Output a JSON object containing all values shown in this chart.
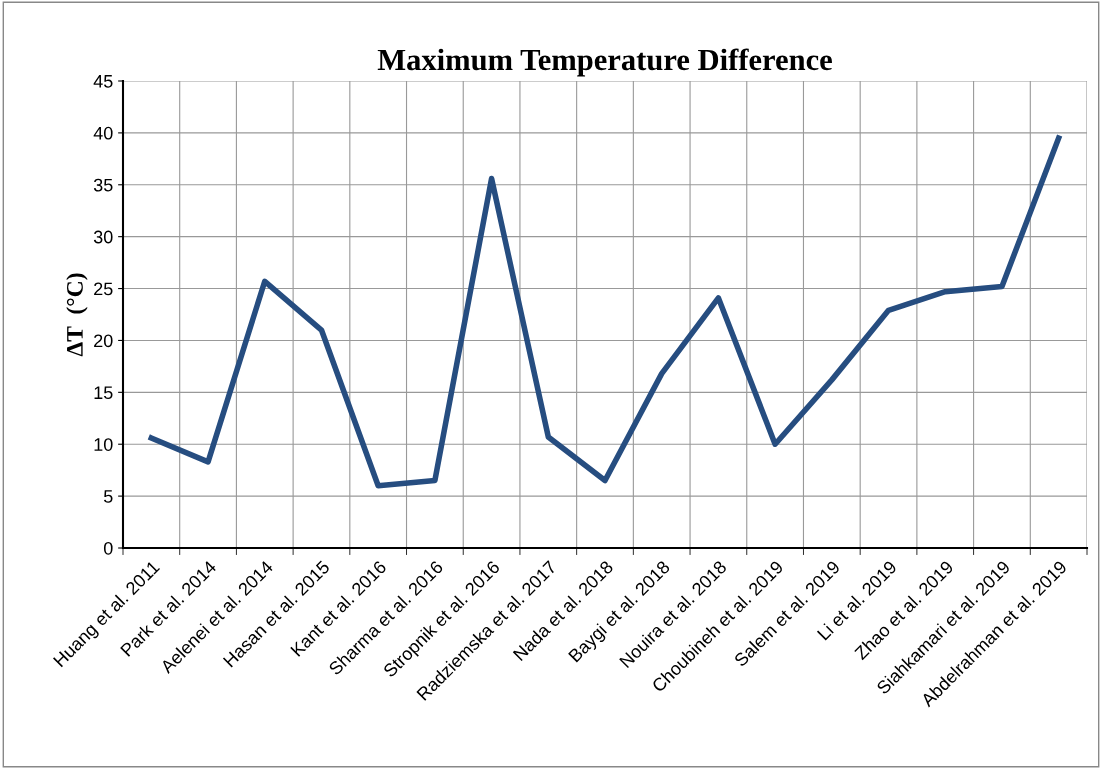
{
  "chart_data": {
    "type": "line",
    "title": "Maximum Temperature Difference",
    "ylabel": "ΔT  (°C)",
    "categories": [
      "Huang et al. 2011",
      "Park et al. 2014",
      "Aelenei et al. 2014",
      "Hasan et al. 2015",
      "Kant et al. 2016",
      "Sharma et al. 2016",
      "Stropnik et al. 2016",
      "Radziemska et al. 2017",
      "Nada et al. 2018",
      "Baygi et al. 2018",
      "Nouira et al. 2018",
      "Choubineh et al. 2019",
      "Salem et al. 2019",
      "Li et al. 2019",
      "Zhao et al. 2019",
      "Siahkamari et al. 2019",
      "Abdelrahman et al. 2019"
    ],
    "series": [
      {
        "color": "#264d80",
        "values": [
          10.6,
          8.3,
          25.7,
          21.0,
          6.0,
          6.5,
          35.6,
          10.7,
          6.5,
          16.8,
          24.1,
          10.0,
          16.2,
          22.9,
          24.7,
          25.2,
          39.5
        ]
      }
    ],
    "ylim": [
      0,
      45
    ],
    "yticks": [
      0,
      5,
      10,
      15,
      20,
      25,
      30,
      35,
      40,
      45
    ],
    "grid": true,
    "legend": false,
    "marker": "none",
    "line_style": "solid"
  }
}
